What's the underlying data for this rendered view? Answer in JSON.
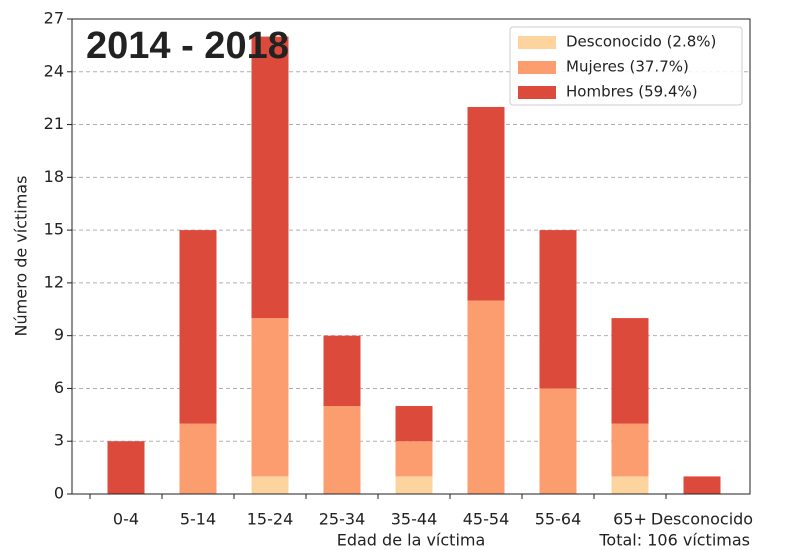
{
  "chart_data": {
    "type": "stacked_bar",
    "title": "2014 - 2018",
    "annotation": "Total: 106 víctimas",
    "x_label": "Edad de la víctima",
    "y_label": "Número de víctimas",
    "categories": [
      "0-4",
      "5-14",
      "15-24",
      "25-34",
      "35-44",
      "45-54",
      "55-64",
      "65+",
      "Desconocido"
    ],
    "series": [
      {
        "name": "Desconocido (2.8%)",
        "color": "#fdd49e",
        "values": [
          0,
          0,
          1,
          0,
          1,
          0,
          0,
          1,
          0
        ]
      },
      {
        "name": "Mujeres (37.7%)",
        "color": "#fc9d6f",
        "values": [
          0,
          4,
          9,
          5,
          2,
          11,
          6,
          3,
          0
        ]
      },
      {
        "name": "Hombres (59.4%)",
        "color": "#dc4a3b",
        "values": [
          3,
          11,
          16,
          4,
          2,
          11,
          9,
          6,
          1
        ]
      }
    ],
    "ylim": [
      0,
      27
    ],
    "yticks": [
      0,
      3,
      6,
      9,
      12,
      15,
      18,
      21,
      24,
      27
    ],
    "grid": true,
    "legend": "upper right"
  }
}
